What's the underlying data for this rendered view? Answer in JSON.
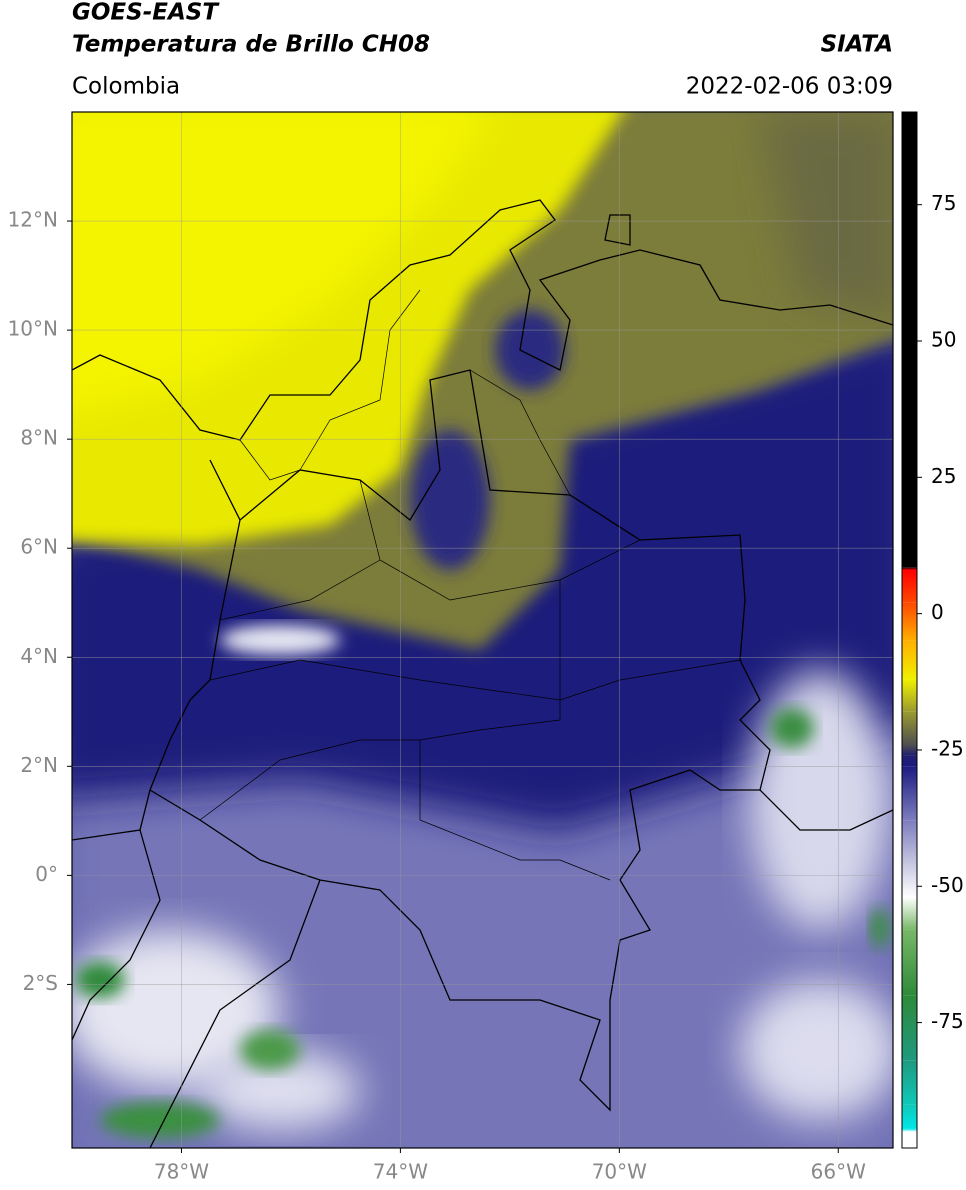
{
  "header": {
    "title": "GOES-EAST",
    "subtitle": "Temperatura de Brillo CH08",
    "region": "Colombia",
    "source": "SIATA",
    "datetime": "2022-02-06 03:09"
  },
  "map": {
    "xlim": [
      -80,
      -65
    ],
    "ylim": [
      -5,
      14
    ],
    "grid": true,
    "xticks": [
      {
        "value": -78,
        "label": "78°W"
      },
      {
        "value": -74,
        "label": "74°W"
      },
      {
        "value": -70,
        "label": "70°W"
      },
      {
        "value": -66,
        "label": "66°W"
      }
    ],
    "yticks": [
      {
        "value": 12,
        "label": "12°N"
      },
      {
        "value": 10,
        "label": "10°N"
      },
      {
        "value": 8,
        "label": "8°N"
      },
      {
        "value": 6,
        "label": "6°N"
      },
      {
        "value": 4,
        "label": "4°N"
      },
      {
        "value": 2,
        "label": "2°N"
      },
      {
        "value": 0,
        "label": "0°"
      },
      {
        "value": -2,
        "label": "2°S"
      }
    ]
  },
  "colorbar": {
    "lim": [
      -98,
      92
    ],
    "ticks": [
      75,
      50,
      25,
      0,
      -25,
      -50,
      -75
    ],
    "colormap": [
      [
        -98,
        "#ffffff"
      ],
      [
        -95,
        "#ffffff"
      ],
      [
        -94.5,
        "#00e8e8"
      ],
      [
        -90,
        "#10c8b8"
      ],
      [
        -82,
        "#1f9a80"
      ],
      [
        -70,
        "#2e8a3a"
      ],
      [
        -58,
        "#78b868"
      ],
      [
        -52,
        "#ffffff"
      ],
      [
        -46,
        "#c8c8e2"
      ],
      [
        -38,
        "#7e7ebf"
      ],
      [
        -28,
        "#1c1c82"
      ],
      [
        -26,
        "#202070"
      ],
      [
        -24,
        "#505050"
      ],
      [
        -18,
        "#9a9a30"
      ],
      [
        -12,
        "#f0f000"
      ],
      [
        -5,
        "#ffb000"
      ],
      [
        2,
        "#ff4800"
      ],
      [
        8,
        "#ff0000"
      ],
      [
        8.5,
        "#000000"
      ],
      [
        92,
        "#000000"
      ]
    ]
  }
}
